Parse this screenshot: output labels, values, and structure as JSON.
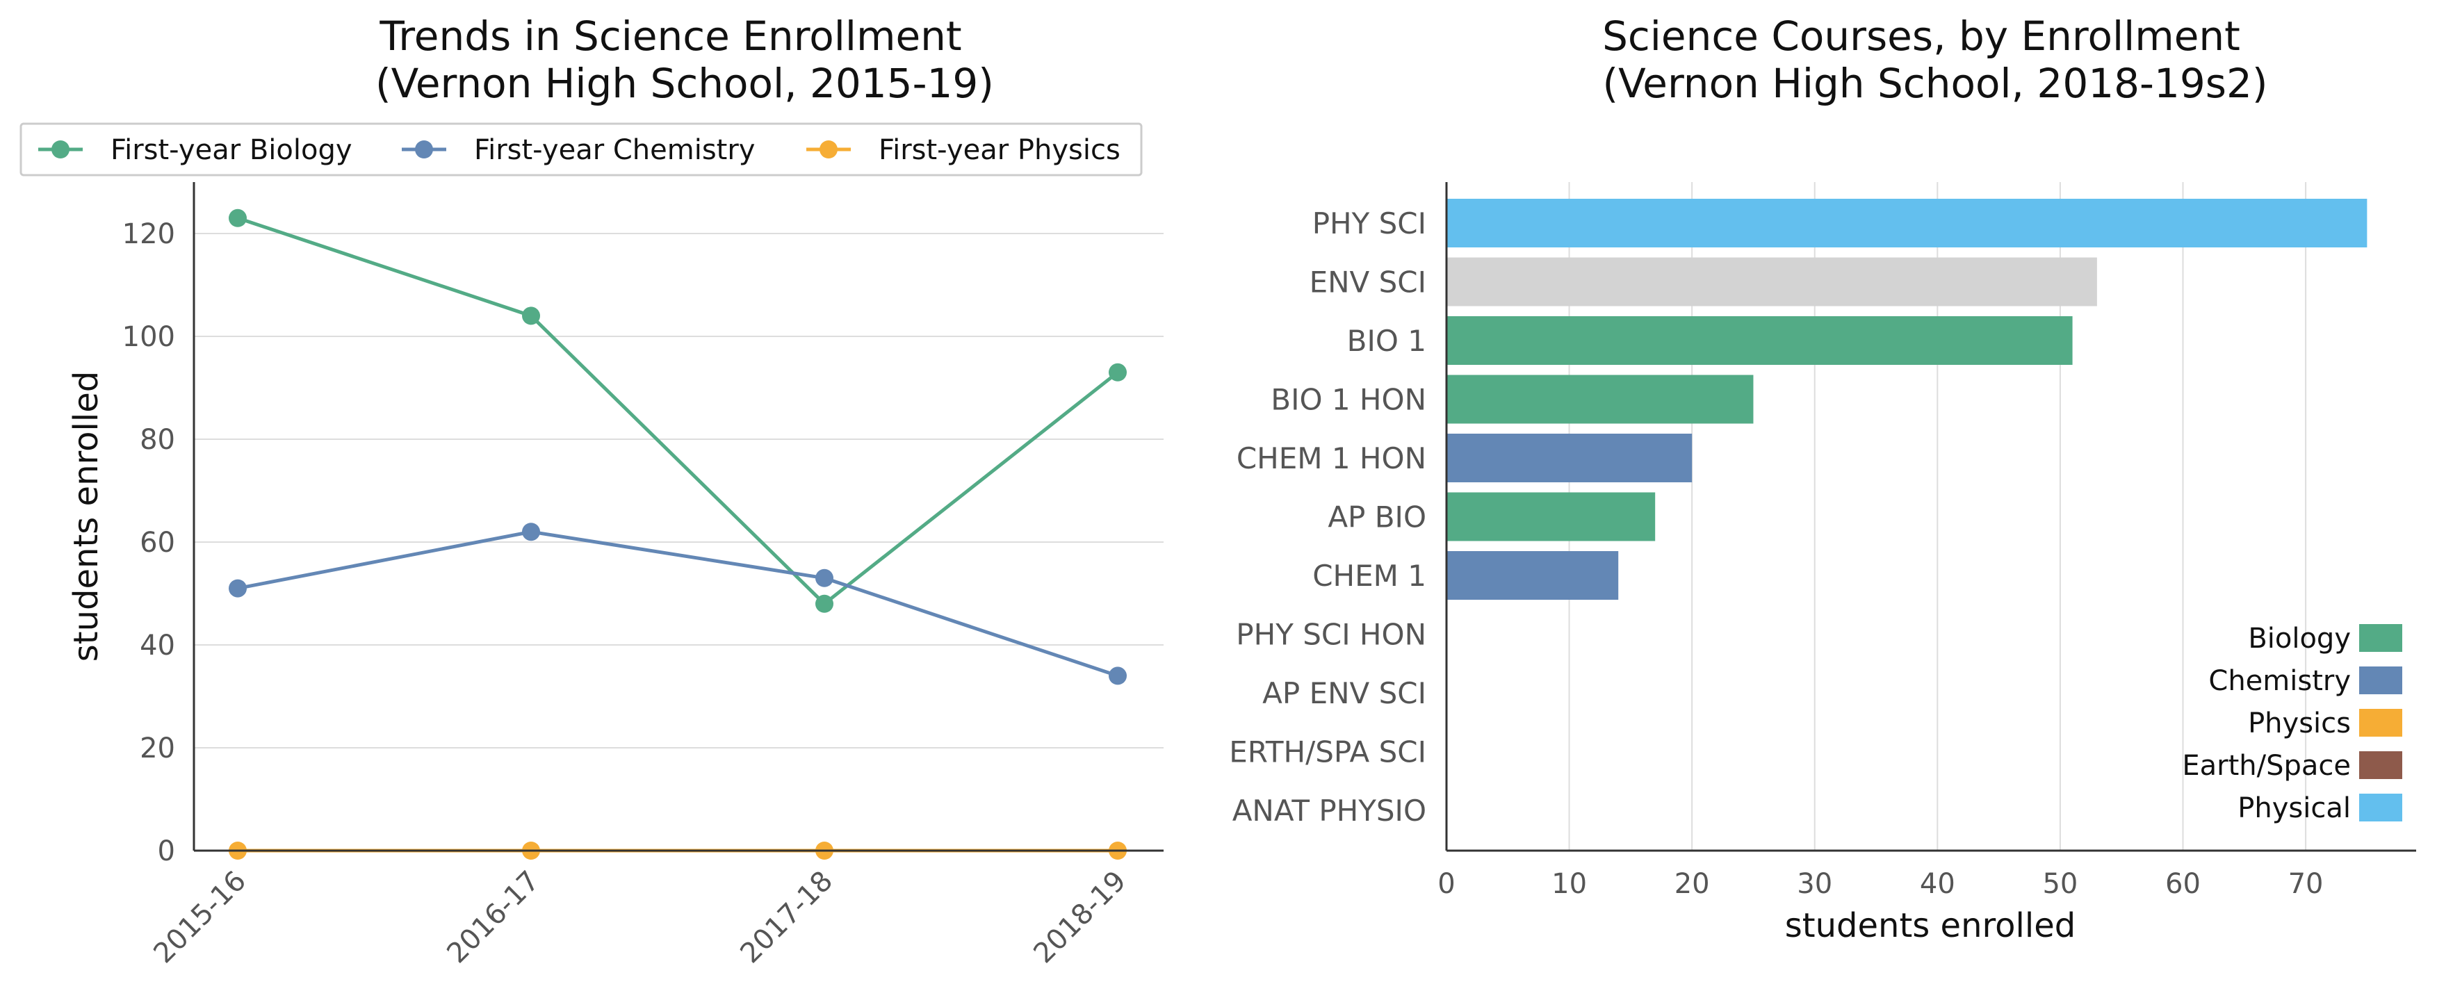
{
  "chart_data": [
    {
      "type": "line",
      "title_line1": "Trends in Science Enrollment",
      "title_line2": "(Vernon High School, 2015-19)",
      "xlabel": "",
      "ylabel": "students enrolled",
      "categories": [
        "2015-16",
        "2016-17",
        "2017-18",
        "2018-19"
      ],
      "ylim": [
        0,
        130
      ],
      "yticks": [
        0,
        20,
        40,
        60,
        80,
        100,
        120
      ],
      "grid": "horizontal",
      "legend_placement": "top",
      "series": [
        {
          "name": "First-year Biology",
          "color": "#53ab86",
          "values": [
            123,
            104,
            48,
            93
          ]
        },
        {
          "name": "First-year Chemistry",
          "color": "#6387b5",
          "values": [
            51,
            62,
            53,
            34
          ]
        },
        {
          "name": "First-year Physics",
          "color": "#f6ad35",
          "values": [
            0,
            0,
            0,
            0
          ]
        }
      ]
    },
    {
      "type": "bar",
      "orientation": "horizontal",
      "title_line1": "Science Courses, by Enrollment",
      "title_line2": "(Vernon High School, 2018-19s2)",
      "xlabel": "students enrolled",
      "ylabel": "",
      "xlim": [
        0,
        79
      ],
      "xticks": [
        0,
        10,
        20,
        30,
        40,
        50,
        60,
        70
      ],
      "grid": "vertical",
      "legend_placement": "lower-right",
      "categories": [
        "PHY SCI",
        "ENV SCI",
        "BIO 1",
        "BIO 1 HON",
        "CHEM 1 HON",
        "AP BIO",
        "CHEM 1",
        "PHY SCI HON",
        "AP ENV SCI",
        "ERTH/SPA SCI",
        "ANAT PHYSIO"
      ],
      "values": [
        75,
        53,
        51,
        25,
        20,
        17,
        14,
        0,
        0,
        0,
        0
      ],
      "bar_colors": [
        "#63bfee",
        "#d3d3d3",
        "#53ab86",
        "#53ab86",
        "#6387b5",
        "#53ab86",
        "#6387b5",
        "#d3d3d3",
        "#d3d3d3",
        "#d3d3d3",
        "#d3d3d3"
      ],
      "legend": [
        {
          "name": "Biology",
          "color": "#53ab86"
        },
        {
          "name": "Chemistry",
          "color": "#6387b5"
        },
        {
          "name": "Physics",
          "color": "#f6ad35"
        },
        {
          "name": "Earth/Space",
          "color": "#8e5a4b"
        },
        {
          "name": "Physical",
          "color": "#63bfee"
        }
      ]
    }
  ]
}
